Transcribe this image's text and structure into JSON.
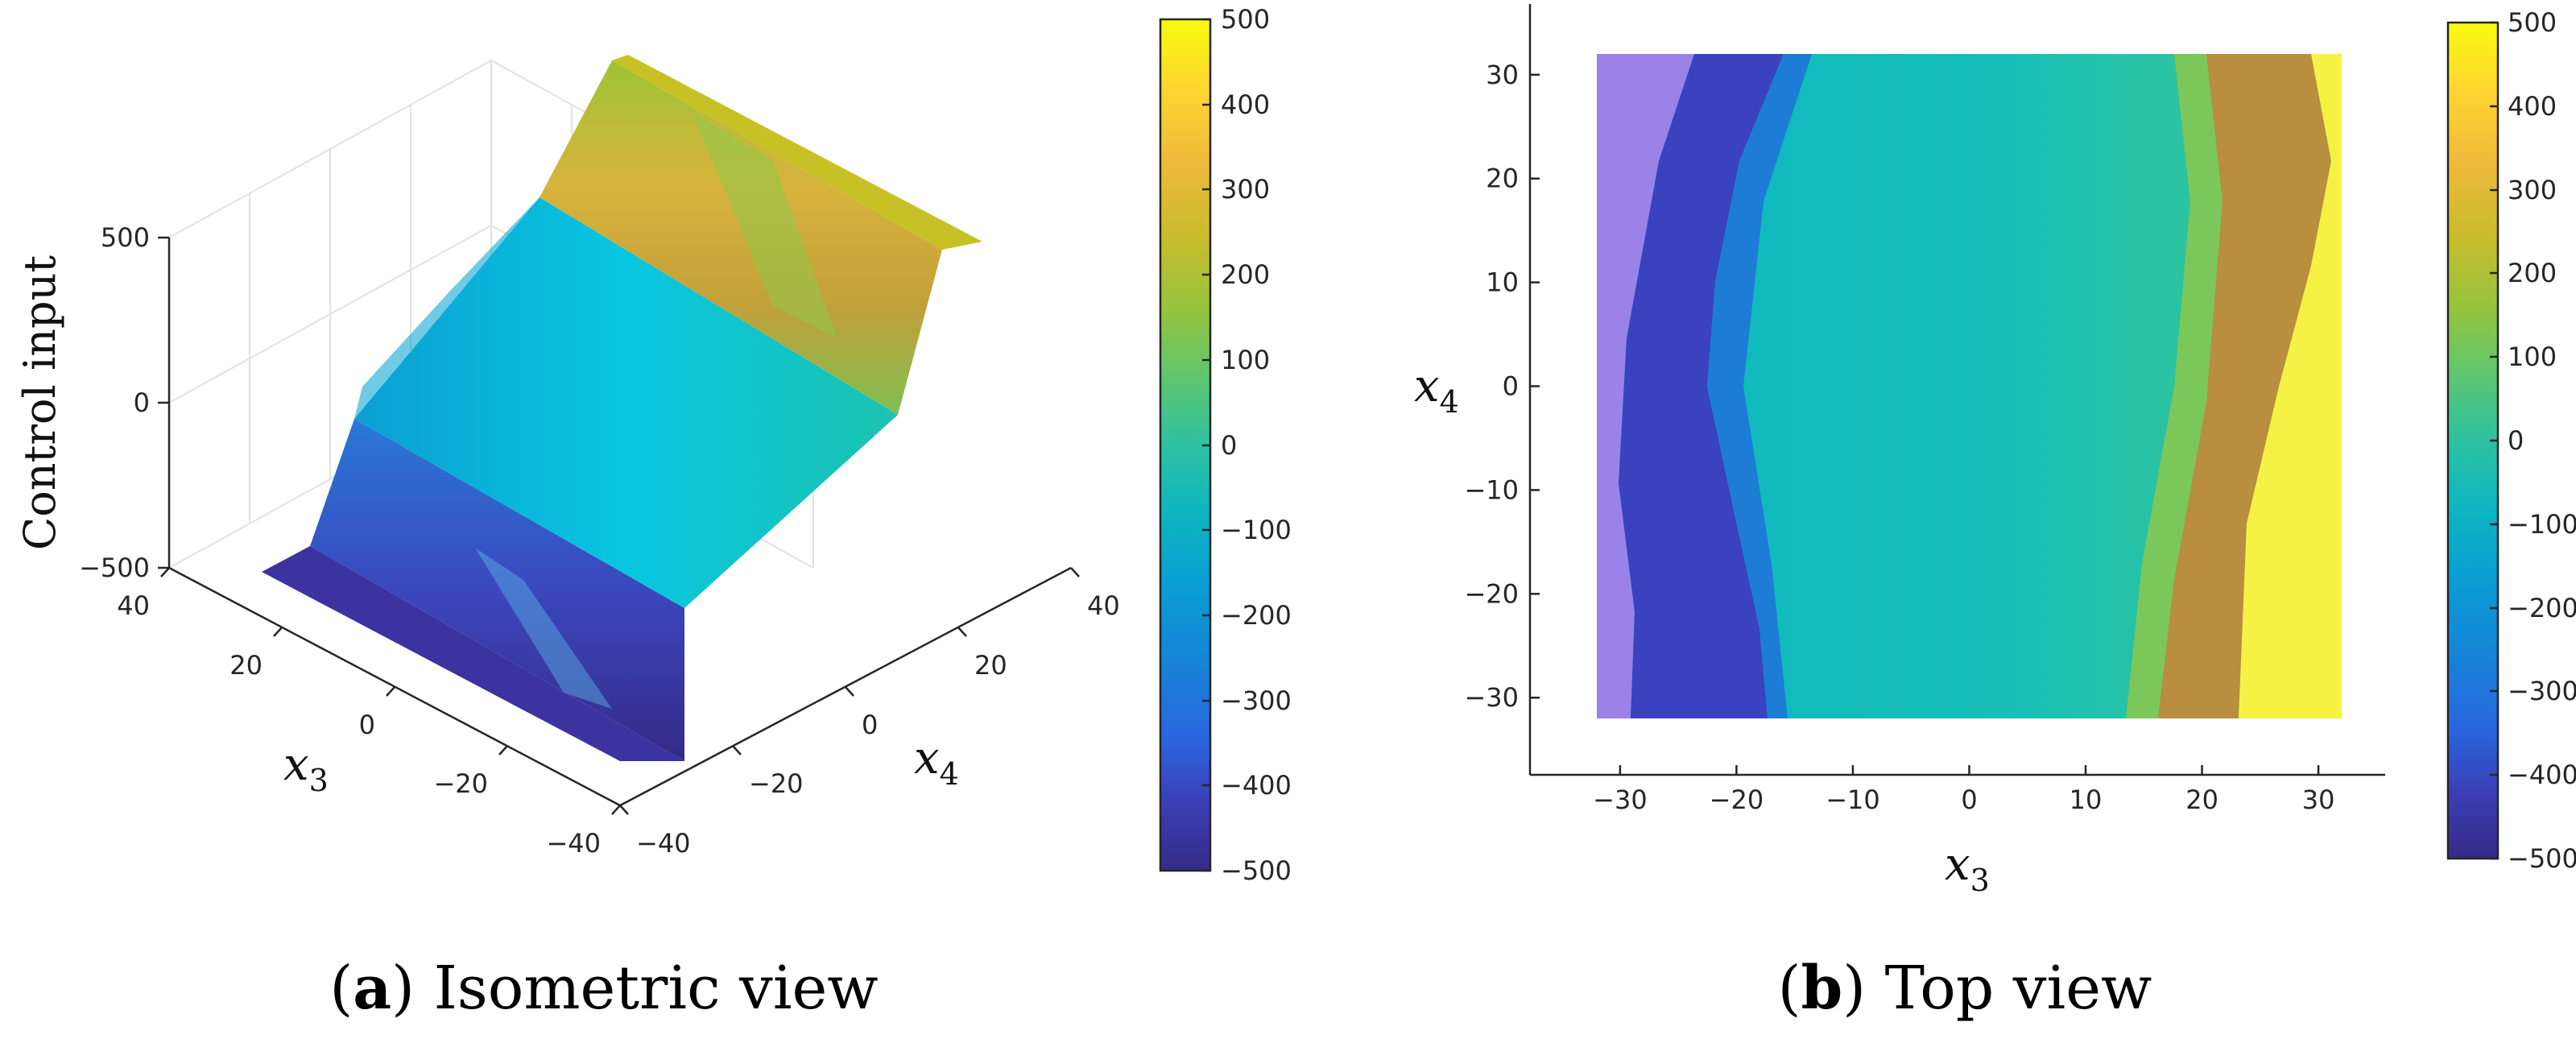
{
  "colors": {
    "parula": [
      "#352a87",
      "#3b3fb7",
      "#2868e0",
      "#1685d7",
      "#0a9fd2",
      "#0db6c0",
      "#2ec1a2",
      "#5ec66f",
      "#96c43d",
      "#c7bc2c",
      "#eeb93b",
      "#fed630",
      "#f9fb0e"
    ],
    "axis": "#262626",
    "grid": "#e6e6e6"
  },
  "chart_data": [
    {
      "type": "surface",
      "panel": "a",
      "zlabel": "Control input",
      "xlabel": "x",
      "xlabel_sub": "3",
      "ylabel": "x",
      "ylabel_sub": "4",
      "x_ticks": [
        "40",
        "20",
        "0",
        "−20",
        "−40"
      ],
      "y_ticks": [
        "−40",
        "−20",
        "0",
        "20",
        "40"
      ],
      "z_ticks": [
        "500",
        "0",
        "−500"
      ],
      "xlim": [
        -40,
        40
      ],
      "ylim": [
        -40,
        40
      ],
      "zlim": [
        -500,
        500
      ],
      "colorbar": {
        "ticks": [
          "500",
          "400",
          "300",
          "200",
          "100",
          "0",
          "−100",
          "−200",
          "−300",
          "−400",
          "−500"
        ],
        "range": [
          -500,
          500
        ]
      },
      "caption_letter": "a",
      "caption_text": " Isometric view"
    },
    {
      "type": "heatmap",
      "panel": "b",
      "xlabel": "x",
      "xlabel_sub": "3",
      "ylabel": "x",
      "ylabel_sub": "4",
      "x_ticks": [
        -30,
        -20,
        -10,
        0,
        10,
        20,
        30
      ],
      "y_ticks": [
        30,
        20,
        10,
        0,
        -10,
        -20,
        -30
      ],
      "x_tick_labels": [
        "−30",
        "−20",
        "−10",
        "0",
        "10",
        "20",
        "30"
      ],
      "y_tick_labels": [
        "30",
        "20",
        "10",
        "0",
        "−10",
        "−20",
        "−30"
      ],
      "xlim": [
        -37,
        37
      ],
      "ylim": [
        -37,
        37
      ],
      "grid": false,
      "colorbar": {
        "ticks": [
          "500",
          "400",
          "300",
          "200",
          "100",
          "0",
          "−100",
          "−200",
          "−300",
          "−400",
          "−500"
        ],
        "range": [
          -500,
          500
        ]
      },
      "caption_letter": "b",
      "caption_text": " Top view"
    }
  ]
}
